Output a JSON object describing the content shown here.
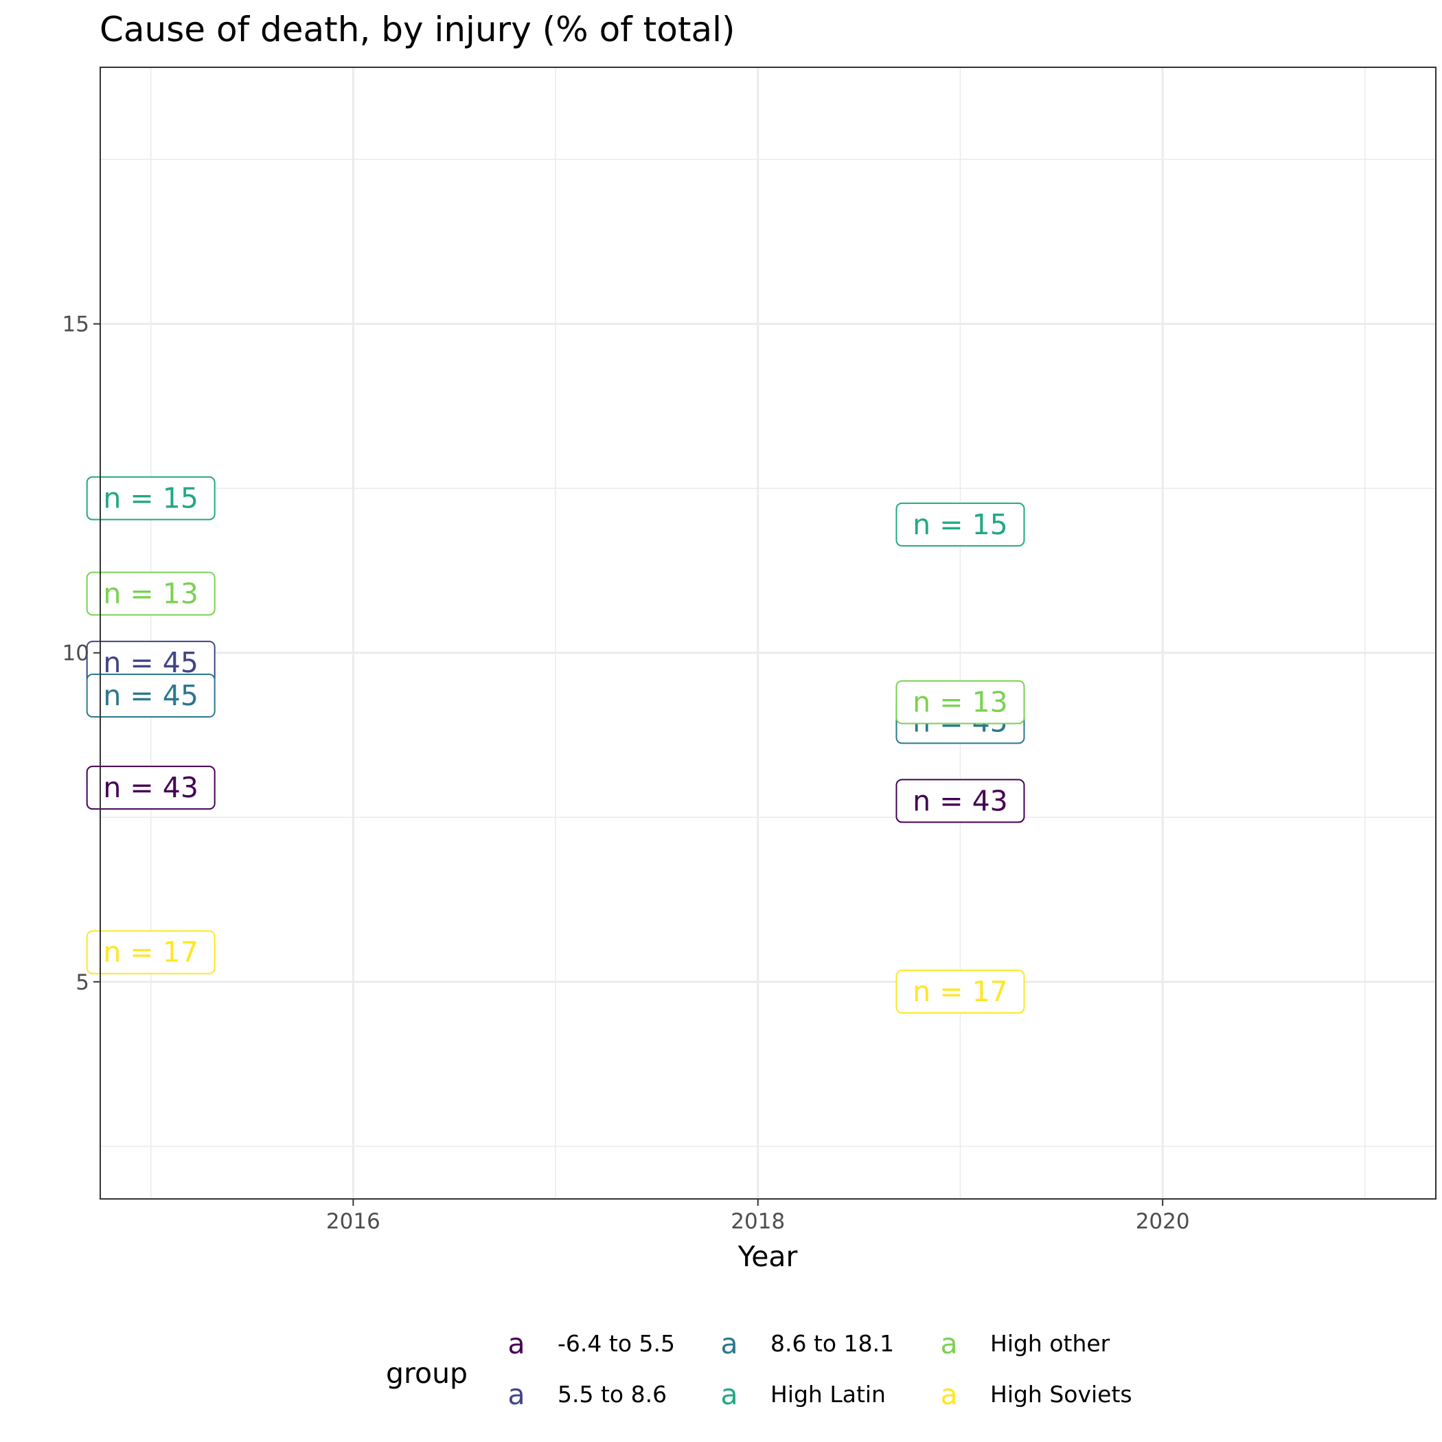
{
  "chart_data": {
    "type": "scatter",
    "geom": "label",
    "title": "Cause of death, by injury (% of total)",
    "xlabel": "Year",
    "ylabel": "",
    "xlim": [
      2014.75,
      2021.35
    ],
    "ylim": [
      1.7,
      18.9
    ],
    "x_ticks": [
      2016,
      2018,
      2020
    ],
    "y_ticks": [
      5,
      10,
      15
    ],
    "grid": true,
    "legend": {
      "title": "group",
      "position": "bottom",
      "key_glyph": "a",
      "entries": [
        {
          "name": "-6.4 to 5.5",
          "color": "#440154"
        },
        {
          "name": "5.5 to 8.6",
          "color": "#414487"
        },
        {
          "name": "8.6 to 18.1",
          "color": "#2A788E"
        },
        {
          "name": "High Latin",
          "color": "#22A884"
        },
        {
          "name": "High other",
          "color": "#7AD151"
        },
        {
          "name": "High Soviets",
          "color": "#FDE725"
        }
      ]
    },
    "series": [
      {
        "name": "-6.4 to 5.5",
        "color": "#440154",
        "points": [
          {
            "x": 2015,
            "y": 7.95,
            "label": "n = 43"
          },
          {
            "x": 2019,
            "y": 7.75,
            "label": "n = 43"
          }
        ]
      },
      {
        "name": "5.5 to 8.6",
        "color": "#414487",
        "points": [
          {
            "x": 2015,
            "y": 9.85,
            "label": "n = 45"
          },
          {
            "x": 2019,
            "y": 9.15,
            "label": "n = 45"
          }
        ]
      },
      {
        "name": "8.6 to 18.1",
        "color": "#2A788E",
        "points": [
          {
            "x": 2015,
            "y": 9.35,
            "label": "n = 45"
          },
          {
            "x": 2019,
            "y": 8.95,
            "label": "n = 45"
          }
        ]
      },
      {
        "name": "High Latin",
        "color": "#22A884",
        "points": [
          {
            "x": 2015,
            "y": 12.35,
            "label": "n = 15"
          },
          {
            "x": 2019,
            "y": 11.95,
            "label": "n = 15"
          }
        ]
      },
      {
        "name": "High other",
        "color": "#7AD151",
        "points": [
          {
            "x": 2015,
            "y": 10.9,
            "label": "n = 13"
          },
          {
            "x": 2019,
            "y": 9.25,
            "label": "n = 13"
          }
        ]
      },
      {
        "name": "High Soviets",
        "color": "#FDE725",
        "points": [
          {
            "x": 2015,
            "y": 5.45,
            "label": "n = 17"
          },
          {
            "x": 2019,
            "y": 4.85,
            "label": "n = 17"
          }
        ]
      }
    ]
  }
}
